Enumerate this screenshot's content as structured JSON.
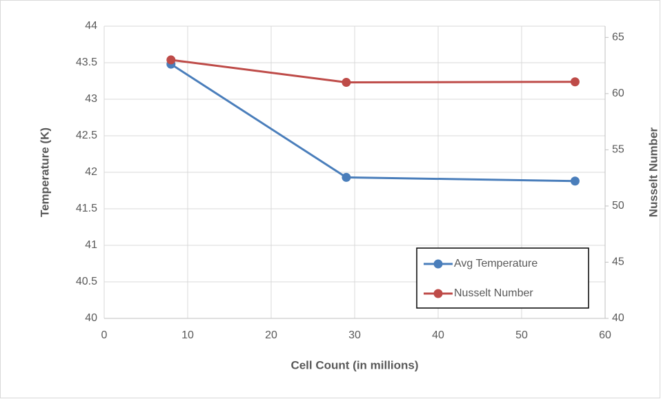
{
  "chart_data": {
    "type": "line",
    "x_label": "Cell Count (in millions)",
    "y_label": "Temperature (K)",
    "y2_label": "Nusselt Number",
    "xlim": [
      0,
      60
    ],
    "xticks": [
      0,
      10,
      20,
      30,
      40,
      50,
      60
    ],
    "ylim": [
      40,
      44
    ],
    "yticks": [
      40,
      40.5,
      41,
      41.5,
      42,
      42.5,
      43,
      43.5,
      44
    ],
    "y2lim": [
      40,
      66
    ],
    "y2ticks": [
      40,
      45,
      50,
      55,
      60,
      65
    ],
    "grid": true,
    "legend": "lower right",
    "series": [
      {
        "name": "Avg Temperature",
        "color": "#4a7ebb",
        "x": [
          8,
          29,
          56.4
        ],
        "values": [
          43.48,
          41.93,
          41.88
        ]
      },
      {
        "name": "Nusselt Number",
        "color": "#be4b48",
        "axis": "y2",
        "x": [
          8,
          29,
          56.4
        ],
        "values": [
          63.0,
          61.0,
          61.05
        ]
      }
    ]
  }
}
